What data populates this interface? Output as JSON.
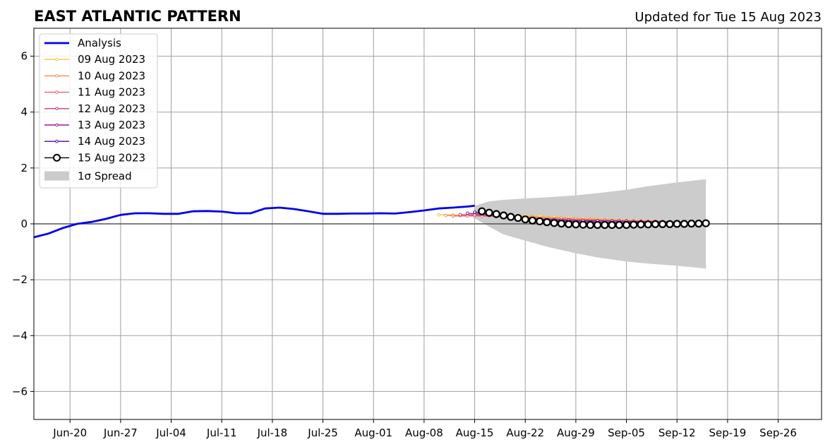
{
  "title": "EAST ATLANTIC PATTERN",
  "subtitle": "Updated for Tue 15 Aug 2023",
  "chart_data": {
    "type": "line",
    "x_type": "date",
    "xlim": [
      "2023-06-15",
      "2023-10-02"
    ],
    "ylim": [
      -7,
      7
    ],
    "x_ticks": [
      {
        "date": "2023-06-20",
        "label": "Jun-20"
      },
      {
        "date": "2023-06-27",
        "label": "Jun-27"
      },
      {
        "date": "2023-07-04",
        "label": "Jul-04"
      },
      {
        "date": "2023-07-11",
        "label": "Jul-11"
      },
      {
        "date": "2023-07-18",
        "label": "Jul-18"
      },
      {
        "date": "2023-07-25",
        "label": "Jul-25"
      },
      {
        "date": "2023-08-01",
        "label": "Aug-01"
      },
      {
        "date": "2023-08-08",
        "label": "Aug-08"
      },
      {
        "date": "2023-08-15",
        "label": "Aug-15"
      },
      {
        "date": "2023-08-22",
        "label": "Aug-22"
      },
      {
        "date": "2023-08-29",
        "label": "Aug-29"
      },
      {
        "date": "2023-09-05",
        "label": "Sep-05"
      },
      {
        "date": "2023-09-12",
        "label": "Sep-12"
      },
      {
        "date": "2023-09-19",
        "label": "Sep-19"
      },
      {
        "date": "2023-09-26",
        "label": "Sep-26"
      }
    ],
    "y_ticks": [
      {
        "value": -6,
        "label": "−6"
      },
      {
        "value": -4,
        "label": "−4"
      },
      {
        "value": -2,
        "label": "−2"
      },
      {
        "value": 0,
        "label": "0"
      },
      {
        "value": 2,
        "label": "2"
      },
      {
        "value": 4,
        "label": "4"
      },
      {
        "value": 6,
        "label": "6"
      }
    ],
    "grid": true,
    "zero_line": true,
    "legend_position": "top-left",
    "analysis": {
      "name": "Analysis",
      "color": "#0000ee",
      "x": [
        "2023-06-15",
        "2023-06-17",
        "2023-06-19",
        "2023-06-21",
        "2023-06-23",
        "2023-06-25",
        "2023-06-27",
        "2023-06-29",
        "2023-07-01",
        "2023-07-03",
        "2023-07-05",
        "2023-07-07",
        "2023-07-09",
        "2023-07-11",
        "2023-07-13",
        "2023-07-15",
        "2023-07-17",
        "2023-07-19",
        "2023-07-21",
        "2023-07-23",
        "2023-07-25",
        "2023-07-27",
        "2023-07-29",
        "2023-07-31",
        "2023-08-02",
        "2023-08-04",
        "2023-08-06",
        "2023-08-08",
        "2023-08-10",
        "2023-08-12",
        "2023-08-14",
        "2023-08-15"
      ],
      "y": [
        -0.48,
        -0.35,
        -0.15,
        0.0,
        0.07,
        0.18,
        0.32,
        0.38,
        0.38,
        0.36,
        0.36,
        0.45,
        0.46,
        0.44,
        0.38,
        0.38,
        0.55,
        0.58,
        0.53,
        0.45,
        0.36,
        0.36,
        0.37,
        0.37,
        0.38,
        0.37,
        0.42,
        0.48,
        0.55,
        0.58,
        0.62,
        0.65
      ]
    },
    "forecasts": [
      {
        "name": "09 Aug 2023",
        "color": "#fcc33a",
        "x": [
          "2023-08-10",
          "2023-08-12",
          "2023-08-14",
          "2023-08-16",
          "2023-08-18",
          "2023-08-20",
          "2023-08-22",
          "2023-08-24",
          "2023-08-26",
          "2023-08-28",
          "2023-08-30",
          "2023-09-01",
          "2023-09-03",
          "2023-09-05",
          "2023-09-07",
          "2023-09-09"
        ],
        "y": [
          0.32,
          0.32,
          0.3,
          0.3,
          0.3,
          0.3,
          0.29,
          0.27,
          0.25,
          0.22,
          0.2,
          0.18,
          0.15,
          0.13,
          0.11,
          0.1
        ]
      },
      {
        "name": "10 Aug 2023",
        "color": "#f48c49",
        "x": [
          "2023-08-11",
          "2023-08-13",
          "2023-08-15",
          "2023-08-17",
          "2023-08-19",
          "2023-08-21",
          "2023-08-23",
          "2023-08-25",
          "2023-08-27",
          "2023-08-29",
          "2023-08-31",
          "2023-09-02",
          "2023-09-04",
          "2023-09-06",
          "2023-09-08",
          "2023-09-10"
        ],
        "y": [
          0.3,
          0.29,
          0.28,
          0.28,
          0.27,
          0.27,
          0.25,
          0.23,
          0.21,
          0.19,
          0.17,
          0.15,
          0.13,
          0.11,
          0.1,
          0.09
        ]
      },
      {
        "name": "11 Aug 2023",
        "color": "#e4636a",
        "x": [
          "2023-08-12",
          "2023-08-14",
          "2023-08-16",
          "2023-08-18",
          "2023-08-20",
          "2023-08-22",
          "2023-08-24",
          "2023-08-26",
          "2023-08-28",
          "2023-08-30",
          "2023-09-01",
          "2023-09-03",
          "2023-09-05",
          "2023-09-07",
          "2023-09-09",
          "2023-09-11"
        ],
        "y": [
          0.28,
          0.28,
          0.28,
          0.26,
          0.24,
          0.22,
          0.2,
          0.18,
          0.16,
          0.14,
          0.13,
          0.12,
          0.11,
          0.1,
          0.09,
          0.08
        ]
      },
      {
        "name": "12 Aug 2023",
        "color": "#c13d81",
        "x": [
          "2023-08-13",
          "2023-08-15",
          "2023-08-17",
          "2023-08-19",
          "2023-08-21",
          "2023-08-23",
          "2023-08-25",
          "2023-08-27",
          "2023-08-29",
          "2023-08-31",
          "2023-09-02",
          "2023-09-04",
          "2023-09-06",
          "2023-09-08",
          "2023-09-10",
          "2023-09-12"
        ],
        "y": [
          0.33,
          0.32,
          0.3,
          0.26,
          0.22,
          0.19,
          0.17,
          0.15,
          0.13,
          0.12,
          0.11,
          0.1,
          0.09,
          0.08,
          0.07,
          0.07
        ]
      },
      {
        "name": "13 Aug 2023",
        "color": "#941b8f",
        "x": [
          "2023-08-14",
          "2023-08-16",
          "2023-08-18",
          "2023-08-20",
          "2023-08-22",
          "2023-08-24",
          "2023-08-26",
          "2023-08-28",
          "2023-08-30",
          "2023-09-01",
          "2023-09-03",
          "2023-09-05",
          "2023-09-07",
          "2023-09-09",
          "2023-09-11",
          "2023-09-13"
        ],
        "y": [
          0.38,
          0.35,
          0.3,
          0.25,
          0.2,
          0.17,
          0.15,
          0.13,
          0.12,
          0.11,
          0.1,
          0.09,
          0.08,
          0.07,
          0.07,
          0.06
        ]
      },
      {
        "name": "14 Aug 2023",
        "color": "#4b0a8c",
        "x": [
          "2023-08-15",
          "2023-08-17",
          "2023-08-19",
          "2023-08-21",
          "2023-08-23",
          "2023-08-25",
          "2023-08-27",
          "2023-08-29",
          "2023-08-31",
          "2023-09-02",
          "2023-09-04",
          "2023-09-06",
          "2023-09-08",
          "2023-09-10",
          "2023-09-12",
          "2023-09-14"
        ],
        "y": [
          0.42,
          0.38,
          0.3,
          0.22,
          0.16,
          0.12,
          0.1,
          0.08,
          0.07,
          0.06,
          0.05,
          0.05,
          0.04,
          0.04,
          0.04,
          0.04
        ]
      },
      {
        "name": "15 Aug 2023",
        "color": "#000000",
        "marker": "open-circle",
        "x": [
          "2023-08-16",
          "2023-08-17",
          "2023-08-18",
          "2023-08-19",
          "2023-08-20",
          "2023-08-21",
          "2023-08-22",
          "2023-08-23",
          "2023-08-24",
          "2023-08-25",
          "2023-08-26",
          "2023-08-27",
          "2023-08-28",
          "2023-08-29",
          "2023-08-30",
          "2023-08-31",
          "2023-09-01",
          "2023-09-02",
          "2023-09-03",
          "2023-09-04",
          "2023-09-05",
          "2023-09-06",
          "2023-09-07",
          "2023-09-08",
          "2023-09-09",
          "2023-09-10",
          "2023-09-11",
          "2023-09-12",
          "2023-09-13",
          "2023-09-14",
          "2023-09-15",
          "2023-09-16"
        ],
        "y": [
          0.45,
          0.4,
          0.35,
          0.3,
          0.25,
          0.21,
          0.16,
          0.12,
          0.09,
          0.06,
          0.03,
          0.01,
          -0.01,
          -0.02,
          -0.03,
          -0.04,
          -0.04,
          -0.04,
          -0.04,
          -0.04,
          -0.04,
          -0.03,
          -0.02,
          -0.02,
          -0.01,
          -0.01,
          -0.01,
          0.0,
          0.0,
          0.01,
          0.01,
          0.02
        ]
      }
    ],
    "spread": {
      "name": "1σ Spread",
      "color": "#cccccc",
      "x": [
        "2023-08-15",
        "2023-08-17",
        "2023-08-19",
        "2023-08-22",
        "2023-08-25",
        "2023-08-29",
        "2023-09-01",
        "2023-09-05",
        "2023-09-08",
        "2023-09-12",
        "2023-09-16"
      ],
      "upper": [
        0.65,
        0.8,
        0.86,
        0.91,
        0.95,
        1.02,
        1.1,
        1.22,
        1.35,
        1.48,
        1.6
      ],
      "lower": [
        0.2,
        -0.1,
        -0.38,
        -0.6,
        -0.82,
        -1.05,
        -1.2,
        -1.35,
        -1.42,
        -1.5,
        -1.6
      ]
    }
  }
}
